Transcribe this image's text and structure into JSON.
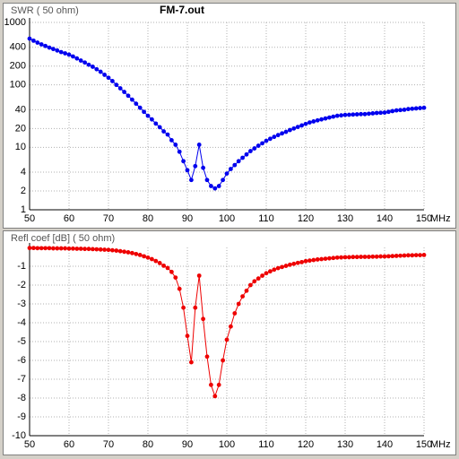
{
  "chart_data": [
    {
      "type": "line",
      "title": "FM-7.out",
      "y_label": "SWR ( 50 ohm)",
      "x_label": "MHz",
      "log_y": true,
      "grid": true,
      "color": "#0000ee",
      "x": [
        50,
        51,
        52,
        53,
        54,
        55,
        56,
        57,
        58,
        59,
        60,
        61,
        62,
        63,
        64,
        65,
        66,
        67,
        68,
        69,
        70,
        71,
        72,
        73,
        74,
        75,
        76,
        77,
        78,
        79,
        80,
        81,
        82,
        83,
        84,
        85,
        86,
        87,
        88,
        89,
        90,
        91,
        92,
        93,
        94,
        95,
        96,
        97,
        98,
        99,
        100,
        101,
        102,
        103,
        104,
        105,
        106,
        107,
        108,
        109,
        110,
        111,
        112,
        113,
        114,
        115,
        116,
        117,
        118,
        119,
        120,
        121,
        122,
        123,
        124,
        125,
        126,
        127,
        128,
        129,
        130,
        131,
        132,
        133,
        134,
        135,
        136,
        137,
        138,
        139,
        140,
        141,
        142,
        143,
        144,
        145,
        146,
        147,
        148,
        149,
        150
      ],
      "values": [
        550,
        510,
        475,
        445,
        420,
        395,
        375,
        355,
        335,
        320,
        305,
        285,
        265,
        245,
        228,
        210,
        195,
        178,
        162,
        145,
        130,
        115,
        100,
        88,
        77,
        67,
        58,
        50,
        43,
        37,
        32,
        28,
        24,
        21,
        18,
        16,
        13,
        11,
        8.5,
        6,
        4.3,
        3,
        5,
        11,
        4.7,
        3,
        2.4,
        2.2,
        2.4,
        3,
        3.8,
        4.5,
        5.2,
        6,
        6.8,
        7.7,
        8.7,
        9.6,
        10.6,
        11.6,
        12.7,
        13.7,
        14.7,
        15.7,
        16.7,
        17.7,
        18.9,
        20,
        21.2,
        22.4,
        23.7,
        25,
        26,
        27,
        28,
        29,
        30,
        31,
        32,
        32.5,
        33,
        33.2,
        33.5,
        33.7,
        34,
        34,
        34.5,
        35,
        35.5,
        35.8,
        36,
        37,
        38,
        39,
        39.5,
        40,
        41,
        41.5,
        42,
        42.5,
        43
      ],
      "xlim": [
        50,
        150
      ],
      "xticks": [
        50,
        60,
        70,
        80,
        90,
        100,
        110,
        120,
        130,
        140,
        150
      ],
      "ylim": [
        1,
        1000
      ],
      "yticks": [
        1,
        2,
        4,
        10,
        20,
        40,
        100,
        200,
        400,
        1000
      ]
    },
    {
      "type": "line",
      "y_label": "Refl coef [dB] ( 50 ohm)",
      "x_label": "MHz",
      "log_y": false,
      "grid": true,
      "color": "#ee0000",
      "x": [
        50,
        51,
        52,
        53,
        54,
        55,
        56,
        57,
        58,
        59,
        60,
        61,
        62,
        63,
        64,
        65,
        66,
        67,
        68,
        69,
        70,
        71,
        72,
        73,
        74,
        75,
        76,
        77,
        78,
        79,
        80,
        81,
        82,
        83,
        84,
        85,
        86,
        87,
        88,
        89,
        90,
        91,
        92,
        93,
        94,
        95,
        96,
        97,
        98,
        99,
        100,
        101,
        102,
        103,
        104,
        105,
        106,
        107,
        108,
        109,
        110,
        111,
        112,
        113,
        114,
        115,
        116,
        117,
        118,
        119,
        120,
        121,
        122,
        123,
        124,
        125,
        126,
        127,
        128,
        129,
        130,
        131,
        132,
        133,
        134,
        135,
        136,
        137,
        138,
        139,
        140,
        141,
        142,
        143,
        144,
        145,
        146,
        147,
        148,
        149,
        150
      ],
      "values": [
        -0.03,
        -0.03,
        -0.04,
        -0.04,
        -0.04,
        -0.04,
        -0.05,
        -0.05,
        -0.05,
        -0.05,
        -0.06,
        -0.06,
        -0.07,
        -0.07,
        -0.08,
        -0.08,
        -0.09,
        -0.1,
        -0.11,
        -0.12,
        -0.13,
        -0.15,
        -0.17,
        -0.2,
        -0.23,
        -0.26,
        -0.3,
        -0.35,
        -0.4,
        -0.47,
        -0.54,
        -0.62,
        -0.72,
        -0.83,
        -0.97,
        -1.09,
        -1.3,
        -1.6,
        -2.2,
        -3.2,
        -4.7,
        -6.1,
        -3.2,
        -1.5,
        -3.8,
        -5.8,
        -7.3,
        -7.9,
        -7.3,
        -6.0,
        -4.9,
        -4.2,
        -3.5,
        -3.0,
        -2.6,
        -2.3,
        -2.0,
        -1.8,
        -1.65,
        -1.5,
        -1.37,
        -1.27,
        -1.18,
        -1.1,
        -1.04,
        -0.98,
        -0.92,
        -0.87,
        -0.82,
        -0.78,
        -0.73,
        -0.7,
        -0.67,
        -0.64,
        -0.62,
        -0.6,
        -0.58,
        -0.56,
        -0.54,
        -0.53,
        -0.52,
        -0.52,
        -0.51,
        -0.51,
        -0.5,
        -0.5,
        -0.5,
        -0.49,
        -0.49,
        -0.48,
        -0.48,
        -0.47,
        -0.46,
        -0.45,
        -0.44,
        -0.43,
        -0.42,
        -0.42,
        -0.41,
        -0.41,
        -0.4
      ],
      "xlim": [
        50,
        150
      ],
      "xticks": [
        50,
        60,
        70,
        80,
        90,
        100,
        110,
        120,
        130,
        140,
        150
      ],
      "ylim": [
        -10,
        0
      ],
      "yticks": [
        -10,
        -9,
        -8,
        -7,
        -6,
        -5,
        -4,
        -3,
        -2,
        -1
      ]
    }
  ]
}
